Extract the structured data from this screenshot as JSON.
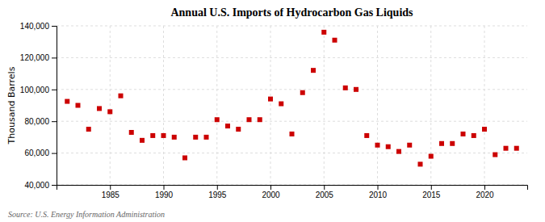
{
  "chart_data": {
    "type": "scatter",
    "title": "Annual U.S. Imports of Hydrocarbon Gas Liquids",
    "y_label": "Thousand Barrels",
    "annotations": [
      "Source: U.S. Energy Information Administration"
    ],
    "x": [
      1981,
      1982,
      1983,
      1984,
      1985,
      1986,
      1987,
      1988,
      1989,
      1990,
      1991,
      1992,
      1993,
      1994,
      1995,
      1996,
      1997,
      1998,
      1999,
      2000,
      2001,
      2002,
      2003,
      2004,
      2005,
      2006,
      2007,
      2008,
      2009,
      2010,
      2011,
      2012,
      2013,
      2014,
      2015,
      2016,
      2017,
      2018,
      2019,
      2020,
      2021,
      2022,
      2023
    ],
    "values": [
      92500,
      90000,
      75000,
      88000,
      86000,
      96000,
      73000,
      68000,
      71000,
      71000,
      70000,
      57000,
      70000,
      70000,
      81000,
      77000,
      75000,
      81000,
      81000,
      94000,
      91000,
      72000,
      98000,
      112000,
      136000,
      131000,
      101000,
      100000,
      71000,
      65000,
      64000,
      61000,
      65000,
      53000,
      58000,
      66000,
      66000,
      72000,
      71000,
      75000,
      59000,
      63000,
      63000
    ],
    "color": "#cc0000",
    "marker": "square",
    "xlim": [
      1980,
      2024
    ],
    "xticks": [
      1985,
      1990,
      1995,
      2000,
      2005,
      2010,
      2015,
      2020
    ],
    "ylim": [
      40000,
      140000
    ],
    "yticks": [
      {
        "value": 40000,
        "label": "40,000"
      },
      {
        "value": 60000,
        "label": "60,000"
      },
      {
        "value": 80000,
        "label": "80,000"
      },
      {
        "value": 100000,
        "label": "100,000"
      },
      {
        "value": 120000,
        "label": "120,000"
      },
      {
        "value": 140000,
        "label": "140,000"
      }
    ],
    "grid": true
  }
}
